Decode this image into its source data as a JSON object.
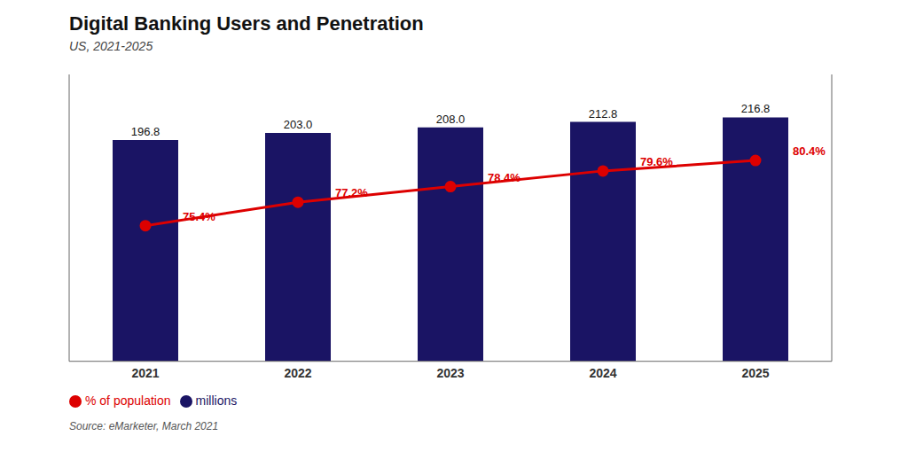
{
  "chart_data": {
    "type": "bar",
    "title": "Digital Banking Users and Penetration",
    "subtitle": "US, 2021-2025",
    "annotations": [
      "Source: eMarketer, March 2021"
    ],
    "categories": [
      "2021",
      "2022",
      "2023",
      "2024",
      "2025"
    ],
    "series": [
      {
        "name": "millions",
        "type": "bar",
        "color": "#1a1464",
        "values": [
          196.8,
          203.0,
          208.0,
          212.8,
          216.8
        ],
        "value_labels": [
          "196.8",
          "203.0",
          "208.0",
          "212.8",
          "216.8"
        ]
      },
      {
        "name": "% of population",
        "type": "line",
        "axis": "y2",
        "color": "#dd0000",
        "marker": "circle",
        "values": [
          75.4,
          77.2,
          78.4,
          79.6,
          80.4
        ],
        "value_labels": [
          "75.4%",
          "77.2%",
          "78.4%",
          "79.6%",
          "80.4%"
        ]
      }
    ],
    "ylim": [
      0,
      255
    ],
    "y2lim": [
      65,
      87
    ],
    "data_labels": true,
    "tick_labels": "x",
    "grid": false,
    "legend": "bottom"
  }
}
